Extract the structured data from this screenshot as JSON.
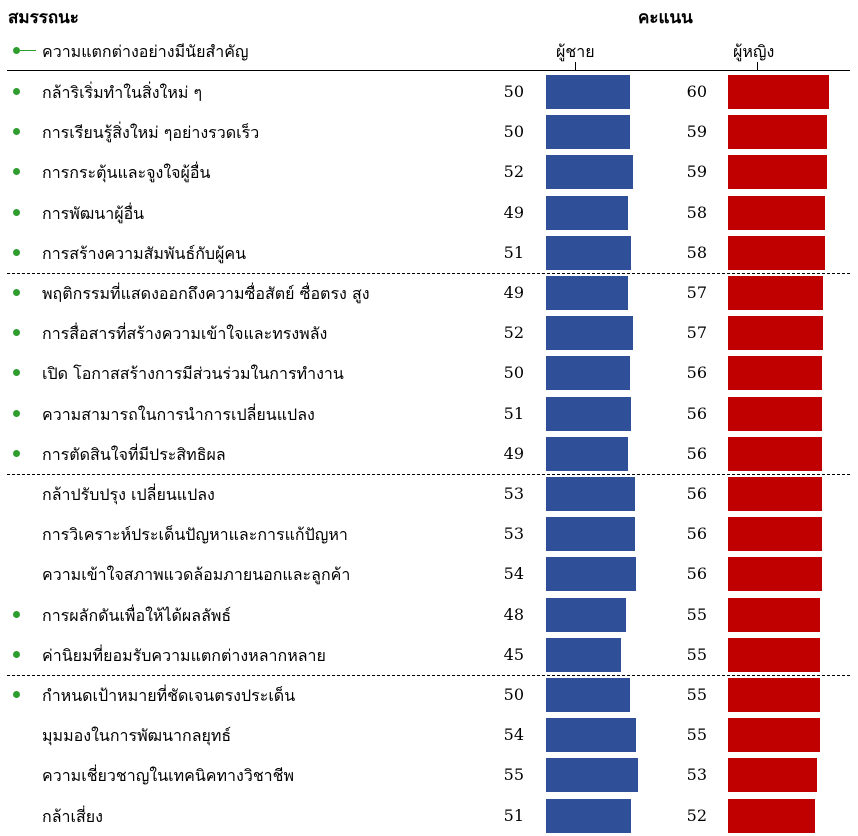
{
  "header": {
    "competency_title": "สมรรถนะ",
    "score_title": "คะแนน",
    "legend_text": "ความแตกต่างอย่างมีนัยสำคัญ",
    "male_label": "ผู้ชาย",
    "female_label": "ผู้หญิง"
  },
  "colors": {
    "male": "#2f4f99",
    "female": "#c00000",
    "significance_dot": "#2e9d2e"
  },
  "chart_data": {
    "type": "bar",
    "orientation": "horizontal",
    "categories": [
      "กล้าริเริ่มทำในสิ่งใหม่ ๆ",
      "การเรียนรู้สิ่งใหม่ ๆอย่างรวดเร็ว",
      "การกระตุ้นและจูงใจผู้อื่น",
      "การพัฒนาผู้อื่น",
      "การสร้างความสัมพันธ์กับผู้คน",
      "พฤติกรรมที่แสดงออกถึงความซื่อสัตย์ ซื่อตรง สูง",
      "การสื่อสารที่สร้างความเข้าใจและทรงพลัง",
      "เปิด โอกาสสร้างการมีส่วนร่วมในการทำงาน",
      "ความสามารถในการนำการเปลี่ยนแปลง",
      "การตัดสินใจที่มีประสิทธิผล",
      "กล้าปรับปรุง เปลี่ยนแปลง",
      "การวิเคราะห์ประเด็นปัญหาและการแก้ปัญหา",
      "ความเข้าใจสภาพแวดล้อมภายนอกและลูกค้า",
      "การผลักดันเพื่อให้ได้ผลลัพธ์",
      "ค่านิยมที่ยอมรับความแตกต่างหลากหลาย",
      "กำหนดเป้าหมายที่ชัดเจนตรงประเด็น",
      "มุมมองในการพัฒนากลยุทธ์",
      "ความเชี่ยวชาญในเทคนิคทางวิชาชีพ",
      "กล้าเสี่ยง"
    ],
    "significant": [
      true,
      true,
      true,
      true,
      true,
      true,
      true,
      true,
      true,
      true,
      false,
      false,
      false,
      true,
      true,
      true,
      false,
      false,
      false
    ],
    "series": [
      {
        "name": "ผู้ชาย",
        "values": [
          50,
          50,
          52,
          49,
          51,
          49,
          52,
          50,
          51,
          49,
          53,
          53,
          54,
          48,
          45,
          50,
          54,
          55,
          51
        ]
      },
      {
        "name": "ผู้หญิง",
        "values": [
          60,
          59,
          59,
          58,
          58,
          57,
          57,
          56,
          56,
          56,
          56,
          56,
          56,
          55,
          55,
          55,
          55,
          53,
          52
        ]
      }
    ],
    "group_breaks_after": [
      4,
      9,
      14
    ]
  }
}
